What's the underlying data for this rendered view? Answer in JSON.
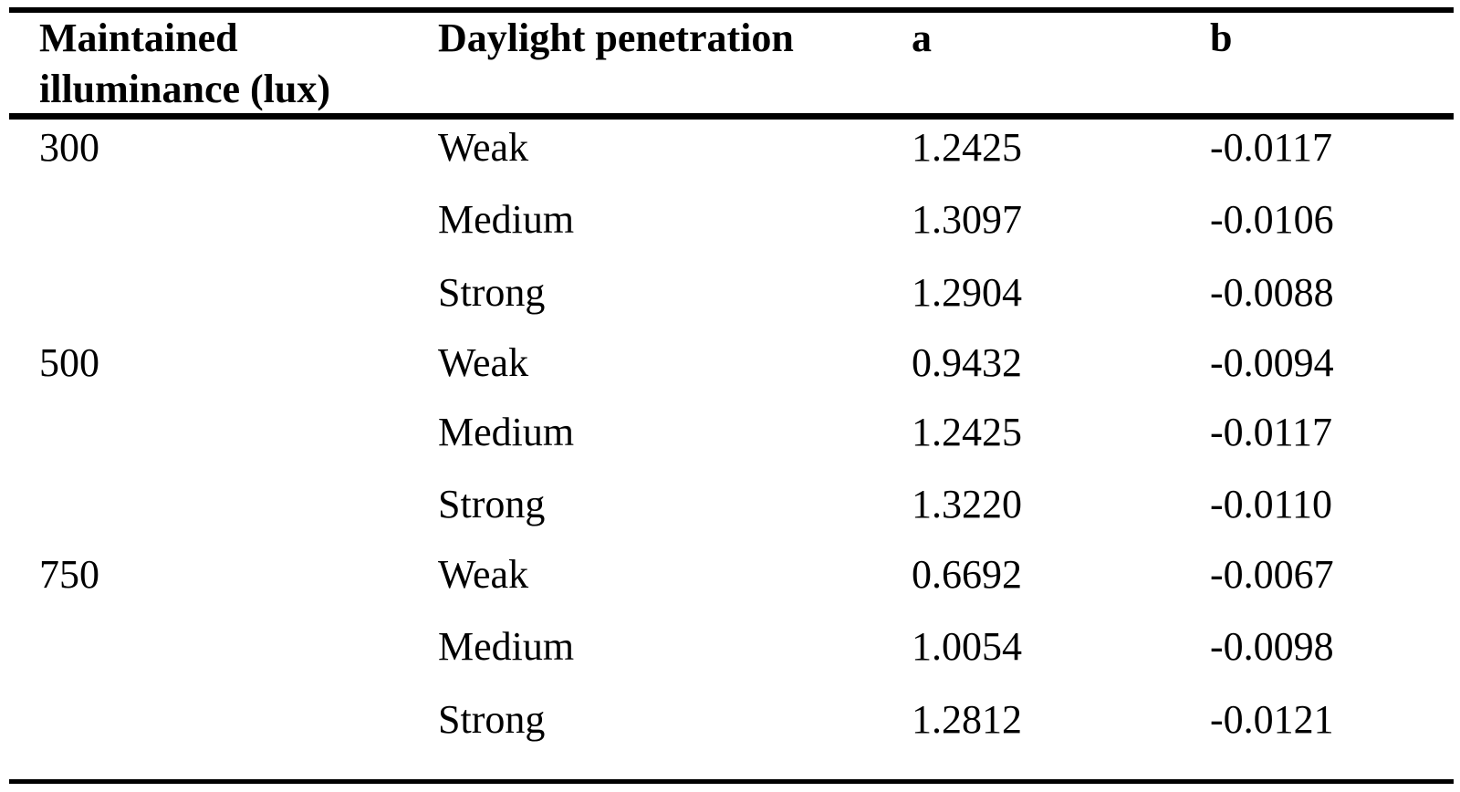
{
  "table": {
    "headers": {
      "illuminance_line1": "Maintained",
      "illuminance_line2": "illuminance (lux)",
      "penetration": "Daylight penetration",
      "a": "a",
      "b": "b"
    },
    "rows": [
      {
        "illuminance": "300",
        "penetration": "Weak",
        "a": "1.2425",
        "b": "-0.0117"
      },
      {
        "illuminance": "",
        "penetration": "Medium",
        "a": "1.3097",
        "b": "-0.0106"
      },
      {
        "illuminance": "",
        "penetration": "Strong",
        "a": "1.2904",
        "b": "-0.0088"
      },
      {
        "illuminance": "500",
        "penetration": "Weak",
        "a": "0.9432",
        "b": "-0.0094"
      },
      {
        "illuminance": "",
        "penetration": "Medium",
        "a": "1.2425",
        "b": "-0.0117"
      },
      {
        "illuminance": "",
        "penetration": "Strong",
        "a": "1.3220",
        "b": "-0.0110"
      },
      {
        "illuminance": "750",
        "penetration": "Weak",
        "a": "0.6692",
        "b": "-0.0067"
      },
      {
        "illuminance": "",
        "penetration": "Medium",
        "a": "1.0054",
        "b": "-0.0098"
      },
      {
        "illuminance": "",
        "penetration": "Strong",
        "a": "1.2812",
        "b": "-0.0121"
      }
    ]
  }
}
